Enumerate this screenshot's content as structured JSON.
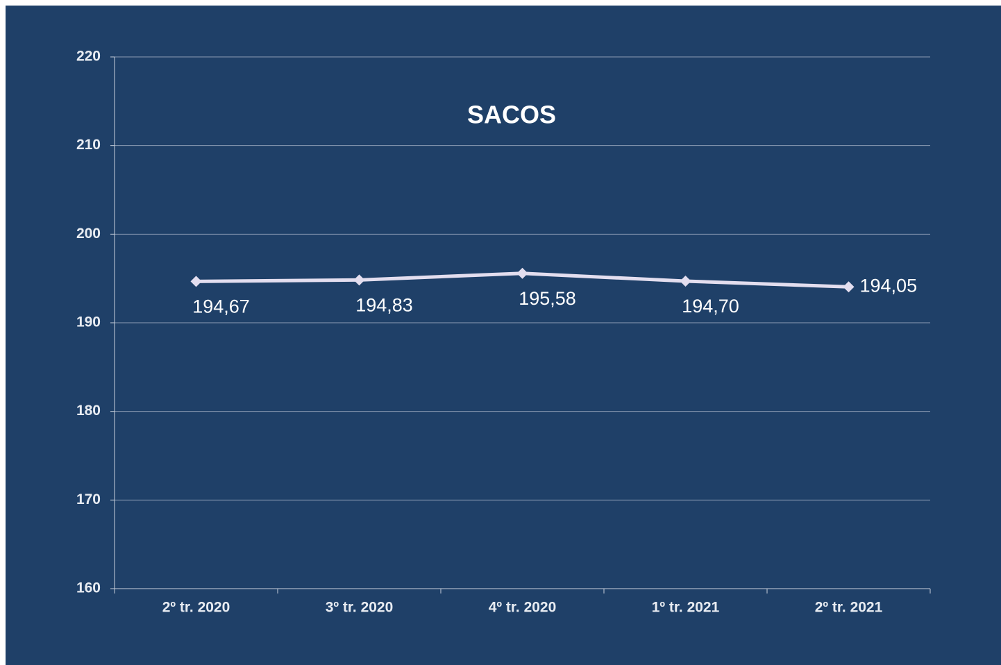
{
  "chart_data": {
    "type": "line",
    "title": "SACOS",
    "categories": [
      "2º tr. 2020",
      "3º tr. 2020",
      "4º tr. 2020",
      "1º tr. 2021",
      "2º tr. 2021"
    ],
    "values": [
      194.67,
      194.83,
      195.58,
      194.7,
      194.05
    ],
    "value_labels": [
      "194,67",
      "194,83",
      "195,58",
      "194,70",
      "194,05"
    ],
    "color": "#e3deef",
    "ylim": [
      160,
      220
    ],
    "yticks": [
      160,
      170,
      180,
      190,
      200,
      210,
      220
    ],
    "grid": true
  }
}
